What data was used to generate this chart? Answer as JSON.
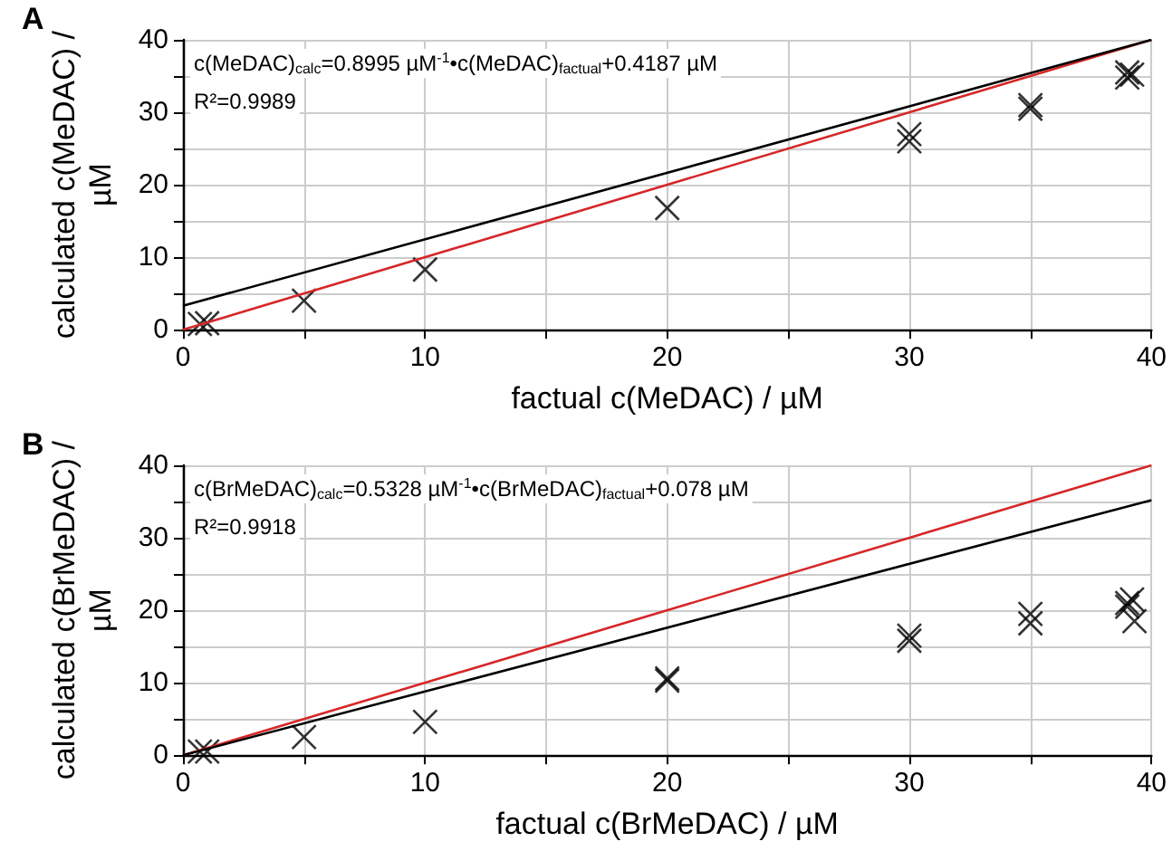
{
  "chart_data": [
    {
      "type": "scatter",
      "title": "A",
      "xlabel": "factual c(MeDAC) / µM",
      "ylabel": "calculated c(MeDAC) / µM",
      "annotations": [
        "c(MeDAC)$_{calc}$=0.8995 µM$^{-1}$•c(MeDAC)$_{factual}$+0.4187 µM",
        "R²=0.9989"
      ],
      "xlim": [
        0,
        40
      ],
      "ylim": [
        0,
        40
      ],
      "xticks": [
        0,
        {
          "value": 5,
          "label": null
        },
        10,
        {
          "value": 15,
          "label": null
        },
        20,
        {
          "value": 25,
          "label": null
        },
        30,
        {
          "value": 35,
          "label": null
        },
        40
      ],
      "yticks": [
        0,
        {
          "value": 5,
          "label": null
        },
        10,
        {
          "value": 15,
          "label": null
        },
        20,
        {
          "value": 25,
          "label": null
        },
        30,
        {
          "value": 35,
          "label": null
        },
        40
      ],
      "grid": true,
      "series": [
        {
          "type": "line",
          "marker": "none",
          "color": "#d62728",
          "x": [
            0,
            40
          ],
          "values": [
            0,
            40
          ]
        },
        {
          "type": "line",
          "marker": "none",
          "color": "#000000",
          "x": [
            0,
            40
          ],
          "values": [
            3.3,
            40
          ]
        },
        {
          "marker": "cross",
          "color": "#000000",
          "x": [
            0.7,
            1,
            5,
            10,
            20,
            30,
            30,
            35,
            35,
            39,
            39.2,
            39
          ],
          "values": [
            0.8,
            0.9,
            4,
            8.3,
            16.8,
            26,
            27,
            30.5,
            31,
            34.8,
            35.2,
            35.5
          ]
        }
      ]
    },
    {
      "type": "scatter",
      "title": "B",
      "xlabel": "factual c(BrMeDAC) / µM",
      "ylabel": "calculated c(BrMeDAC) / µM",
      "annotations": [
        "c(BrMeDAC)$_{calc}$=0.5328 µM$^{-1}$•c(BrMeDAC)$_{factual}$+0.078 µM",
        "R²=0.9918"
      ],
      "xlim": [
        0,
        40
      ],
      "ylim": [
        0,
        40
      ],
      "xticks": [
        0,
        {
          "value": 5,
          "label": null
        },
        10,
        {
          "value": 15,
          "label": null
        },
        20,
        {
          "value": 25,
          "label": null
        },
        30,
        {
          "value": 35,
          "label": null
        },
        40
      ],
      "yticks": [
        0,
        {
          "value": 5,
          "label": null
        },
        10,
        {
          "value": 15,
          "label": null
        },
        20,
        {
          "value": 25,
          "label": null
        },
        30,
        {
          "value": 35,
          "label": null
        },
        40
      ],
      "grid": true,
      "series": [
        {
          "type": "line",
          "marker": "none",
          "color": "#d62728",
          "x": [
            0,
            40
          ],
          "values": [
            0,
            40
          ]
        },
        {
          "type": "line",
          "marker": "none",
          "color": "#000000",
          "x": [
            0,
            40
          ],
          "values": [
            0,
            35.2
          ]
        },
        {
          "marker": "cross",
          "color": "#000000",
          "x": [
            0.7,
            1,
            5,
            10,
            20,
            20,
            30,
            30,
            35,
            35,
            39,
            39.2,
            39.3,
            39
          ],
          "values": [
            0.5,
            0.5,
            2.5,
            4.6,
            10.3,
            10.6,
            15.8,
            16.5,
            18.2,
            19.5,
            21,
            21.5,
            18.5,
            20.5
          ]
        }
      ]
    }
  ]
}
